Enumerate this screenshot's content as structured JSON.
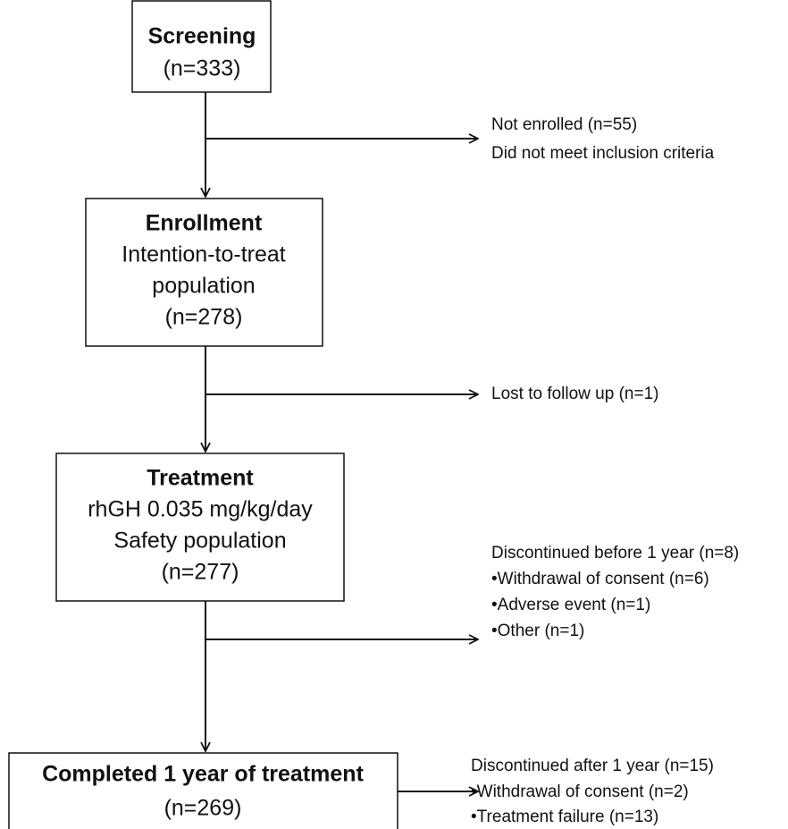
{
  "nodes": [
    {
      "title": "Screening",
      "lines": [
        "(n=333)"
      ]
    },
    {
      "title": "Enrollment",
      "lines": [
        "Intention-to-treat",
        "population",
        "(n=278)"
      ]
    },
    {
      "title": "Treatment",
      "lines": [
        "rhGH 0.035 mg/kg/day",
        "Safety population",
        "(n=277)"
      ]
    },
    {
      "title": "Completed 1 year of treatment",
      "lines": [
        "(n=269)"
      ]
    }
  ],
  "side_notes": [
    {
      "lines": [
        "Not enrolled (n=55)",
        "Did not meet inclusion criteria"
      ]
    },
    {
      "lines": [
        "Lost to follow up (n=1)"
      ]
    },
    {
      "lines": [
        "Discontinued before 1 year (n=8)",
        "•Withdrawal of consent (n=6)",
        "•Adverse event (n=1)",
        "•Other (n=1)"
      ]
    },
    {
      "lines": [
        "Discontinued  after 1 year (n=15)",
        "•Withdrawal of consent (n=2)",
        "•Treatment failure (n=13)"
      ]
    }
  ]
}
